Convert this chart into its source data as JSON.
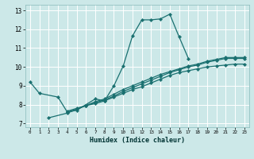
{
  "xlabel": "Humidex (Indice chaleur)",
  "bg_color": "#cce8e8",
  "grid_color": "#ffffff",
  "line_color": "#1a7070",
  "xlim": [
    -0.5,
    23.5
  ],
  "ylim": [
    6.8,
    13.3
  ],
  "xticks": [
    0,
    1,
    2,
    3,
    4,
    5,
    6,
    7,
    8,
    9,
    10,
    11,
    12,
    13,
    14,
    15,
    16,
    17,
    18,
    19,
    20,
    21,
    22,
    23
  ],
  "yticks": [
    7,
    8,
    9,
    10,
    11,
    12,
    13
  ],
  "series": [
    {
      "x": [
        0,
        1,
        3,
        4,
        5,
        7,
        8,
        9,
        10,
        11,
        12,
        13,
        14,
        15,
        16,
        17
      ],
      "y": [
        9.2,
        8.6,
        8.4,
        7.6,
        7.7,
        8.3,
        8.2,
        9.0,
        10.05,
        11.65,
        12.5,
        12.5,
        12.55,
        12.8,
        11.6,
        10.45
      ]
    },
    {
      "x": [
        2,
        4,
        5,
        6,
        7,
        8,
        9,
        10,
        11,
        12,
        13,
        14,
        15,
        16,
        17,
        18,
        19,
        20,
        21,
        22,
        23
      ],
      "y": [
        7.3,
        7.55,
        7.75,
        7.95,
        8.15,
        8.3,
        8.55,
        8.8,
        9.0,
        9.2,
        9.4,
        9.6,
        9.75,
        9.9,
        10.05,
        10.15,
        10.3,
        10.4,
        10.5,
        10.5,
        10.5
      ]
    },
    {
      "x": [
        4,
        5,
        6,
        7,
        8,
        9,
        10,
        11,
        12,
        13,
        14,
        15,
        16,
        17,
        18,
        19,
        20,
        21,
        22,
        23
      ],
      "y": [
        7.6,
        7.75,
        7.95,
        8.1,
        8.25,
        8.45,
        8.7,
        8.9,
        9.1,
        9.3,
        9.5,
        9.7,
        9.85,
        10.0,
        10.1,
        10.25,
        10.35,
        10.45,
        10.45,
        10.45
      ]
    },
    {
      "x": [
        4,
        5,
        6,
        7,
        8,
        9,
        10,
        11,
        12,
        13,
        14,
        15,
        16,
        17,
        18,
        19,
        20,
        21,
        22,
        23
      ],
      "y": [
        7.65,
        7.8,
        7.95,
        8.05,
        8.2,
        8.4,
        8.6,
        8.8,
        8.95,
        9.15,
        9.35,
        9.55,
        9.7,
        9.8,
        9.9,
        10.0,
        10.05,
        10.1,
        10.15,
        10.15
      ]
    }
  ]
}
